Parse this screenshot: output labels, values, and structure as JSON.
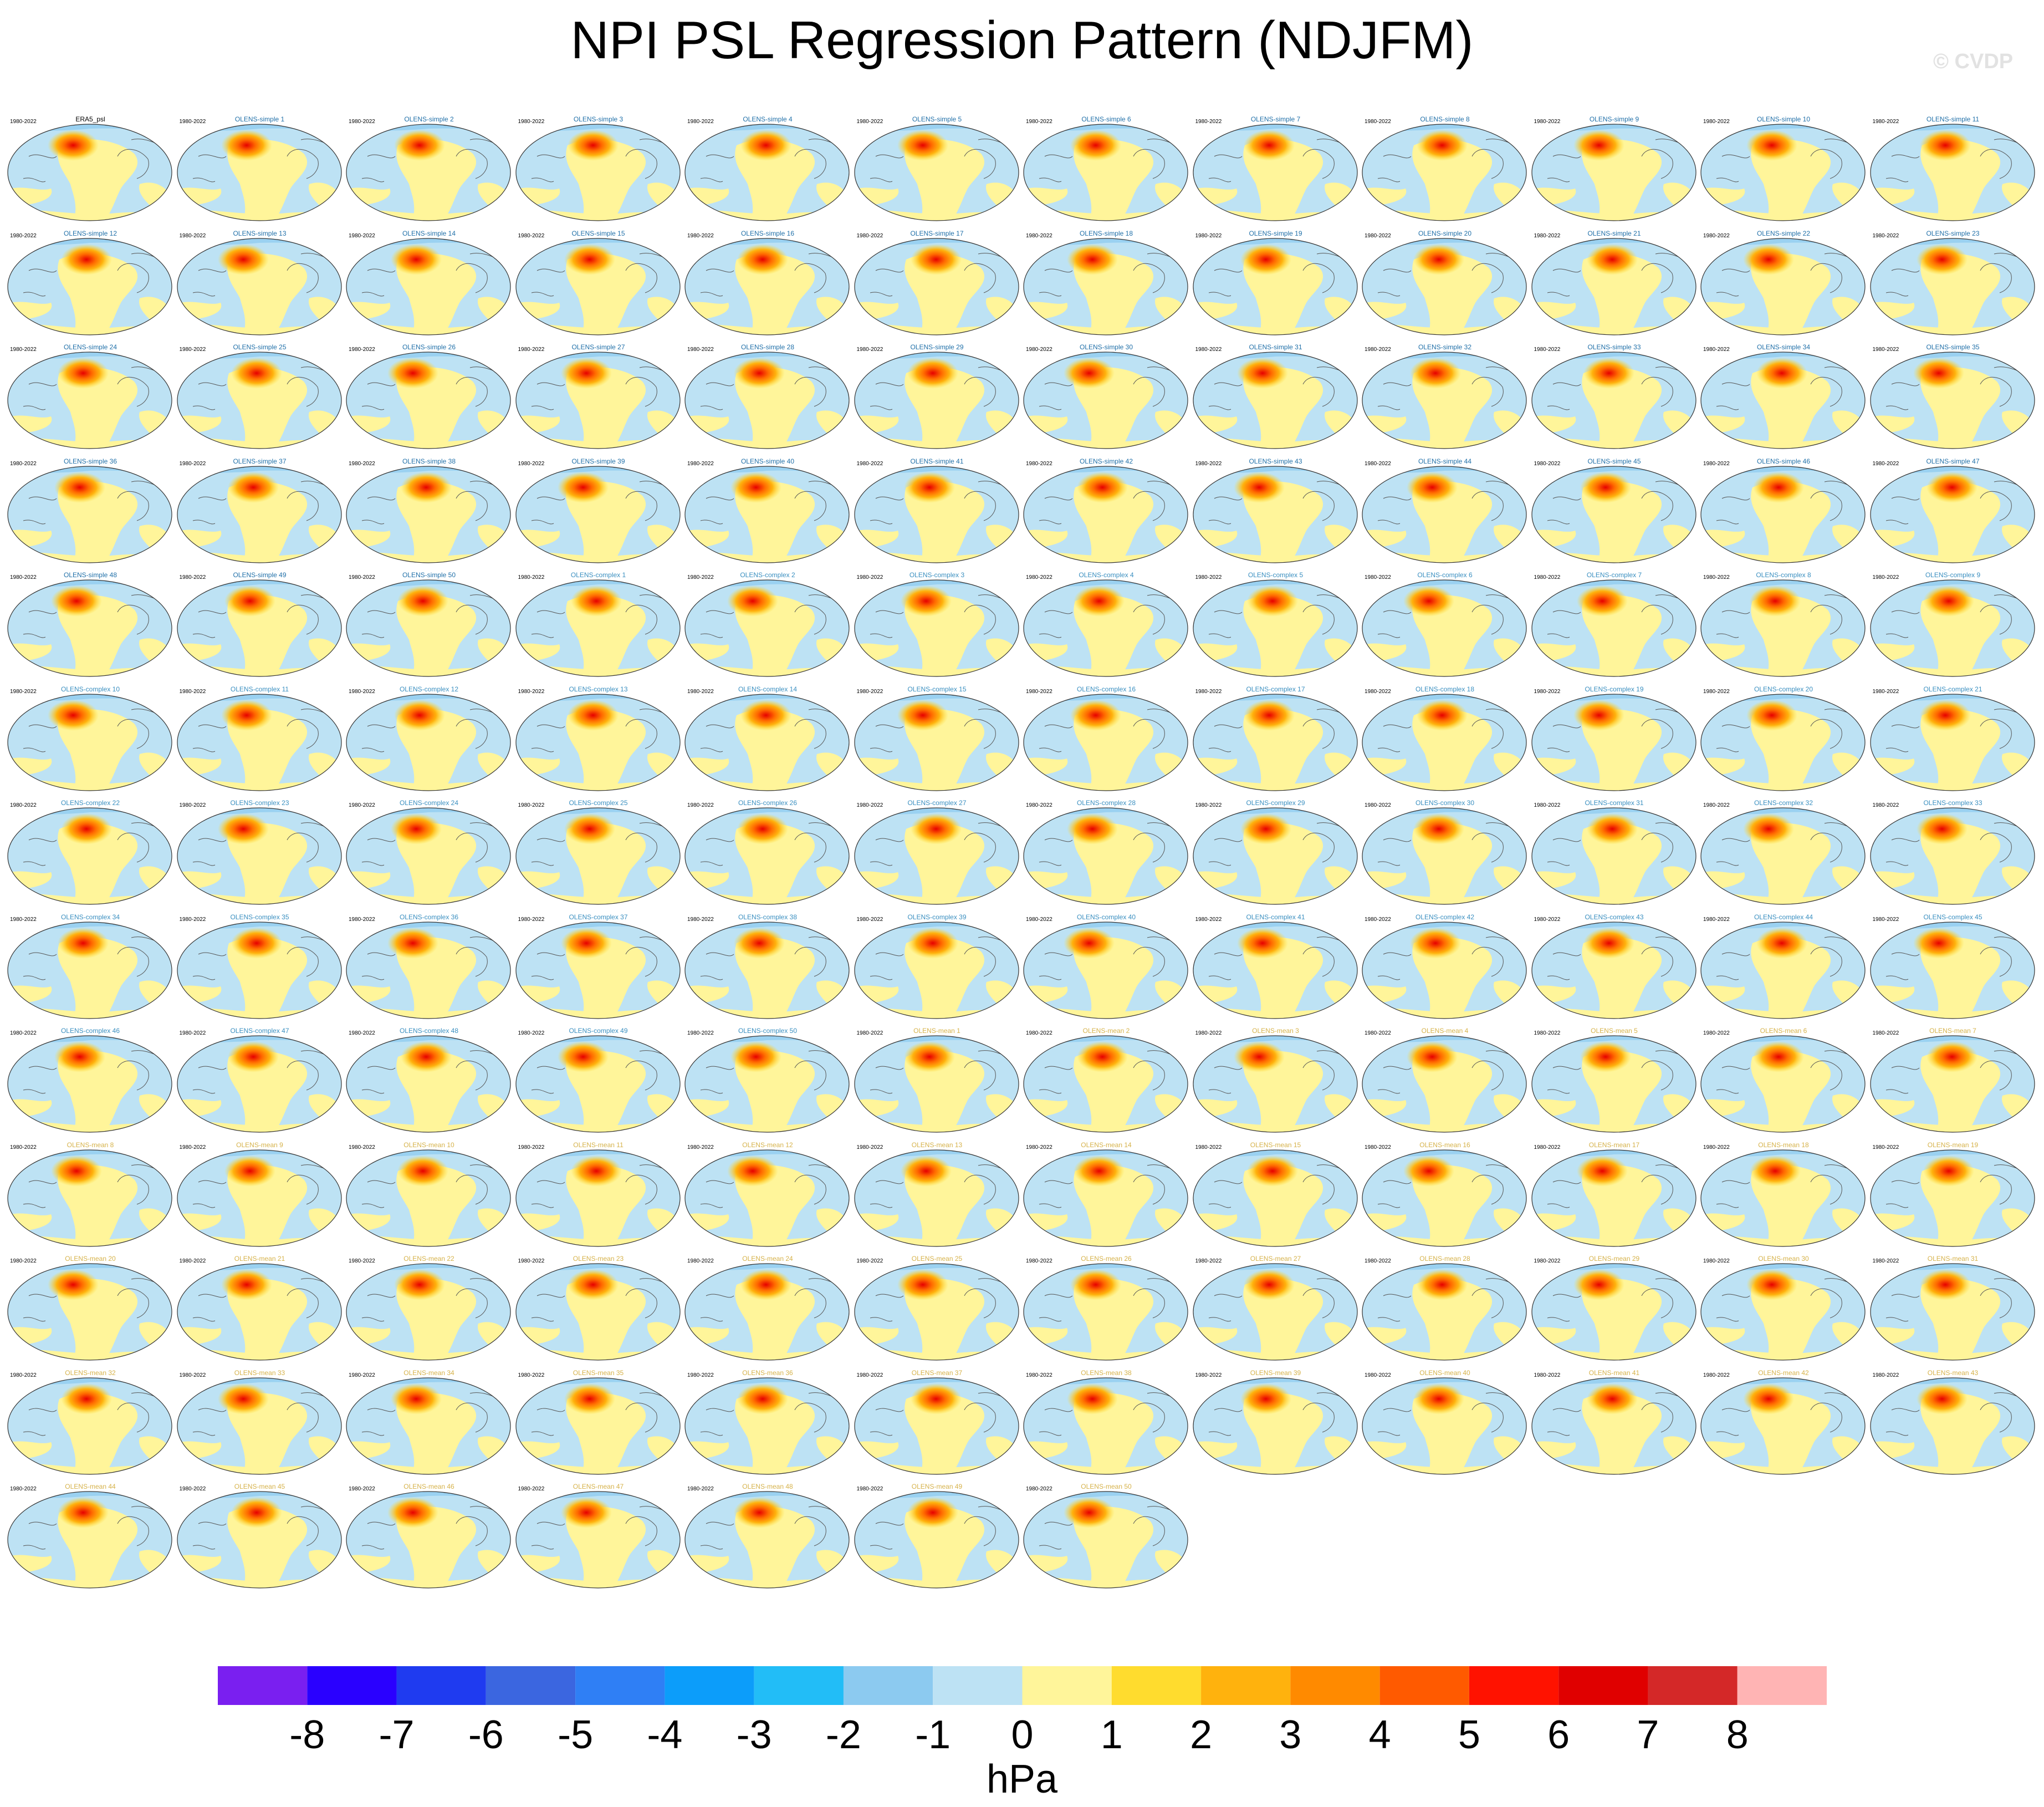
{
  "title": "NPI PSL Regression Pattern (NDJFM)",
  "watermark": "© CVDP",
  "period": "1980-2022",
  "panels": [
    "ERA5_psl",
    "OLENS-simple 1",
    "OLENS-simple 2",
    "OLENS-simple 3",
    "OLENS-simple 4",
    "OLENS-simple 5",
    "OLENS-simple 6",
    "OLENS-simple 7",
    "OLENS-simple 8",
    "OLENS-simple 9",
    "OLENS-simple 10",
    "OLENS-simple 11",
    "OLENS-simple 12",
    "OLENS-simple 13",
    "OLENS-simple 14",
    "OLENS-simple 15",
    "OLENS-simple 16",
    "OLENS-simple 17",
    "OLENS-simple 18",
    "OLENS-simple 19",
    "OLENS-simple 20",
    "OLENS-simple 21",
    "OLENS-simple 22",
    "OLENS-simple 23",
    "OLENS-simple 24",
    "OLENS-simple 25",
    "OLENS-simple 26",
    "OLENS-simple 27",
    "OLENS-simple 28",
    "OLENS-simple 29",
    "OLENS-simple 30",
    "OLENS-simple 31",
    "OLENS-simple 32",
    "OLENS-simple 33",
    "OLENS-simple 34",
    "OLENS-simple 35",
    "OLENS-simple 36",
    "OLENS-simple 37",
    "OLENS-simple 38",
    "OLENS-simple 39",
    "OLENS-simple 40",
    "OLENS-simple 41",
    "OLENS-simple 42",
    "OLENS-simple 43",
    "OLENS-simple 44",
    "OLENS-simple 45",
    "OLENS-simple 46",
    "OLENS-simple 47",
    "OLENS-simple 48",
    "OLENS-simple 49",
    "OLENS-simple 50",
    "OLENS-complex 1",
    "OLENS-complex 2",
    "OLENS-complex 3",
    "OLENS-complex 4",
    "OLENS-complex 5",
    "OLENS-complex 6",
    "OLENS-complex 7",
    "OLENS-complex 8",
    "OLENS-complex 9",
    "OLENS-complex 10",
    "OLENS-complex 11",
    "OLENS-complex 12",
    "OLENS-complex 13",
    "OLENS-complex 14",
    "OLENS-complex 15",
    "OLENS-complex 16",
    "OLENS-complex 17",
    "OLENS-complex 18",
    "OLENS-complex 19",
    "OLENS-complex 20",
    "OLENS-complex 21",
    "OLENS-complex 22",
    "OLENS-complex 23",
    "OLENS-complex 24",
    "OLENS-complex 25",
    "OLENS-complex 26",
    "OLENS-complex 27",
    "OLENS-complex 28",
    "OLENS-complex 29",
    "OLENS-complex 30",
    "OLENS-complex 31",
    "OLENS-complex 32",
    "OLENS-complex 33",
    "OLENS-complex 34",
    "OLENS-complex 35",
    "OLENS-complex 36",
    "OLENS-complex 37",
    "OLENS-complex 38",
    "OLENS-complex 39",
    "OLENS-complex 40",
    "OLENS-complex 41",
    "OLENS-complex 42",
    "OLENS-complex 43",
    "OLENS-complex 44",
    "OLENS-complex 45",
    "OLENS-complex 46",
    "OLENS-complex 47",
    "OLENS-complex 48",
    "OLENS-complex 49",
    "OLENS-complex 50",
    "OLENS-mean 1",
    "OLENS-mean 2",
    "OLENS-mean 3",
    "OLENS-mean 4",
    "OLENS-mean 5",
    "OLENS-mean 6",
    "OLENS-mean 7",
    "OLENS-mean 8",
    "OLENS-mean 9",
    "OLENS-mean 10",
    "OLENS-mean 11",
    "OLENS-mean 12",
    "OLENS-mean 13",
    "OLENS-mean 14",
    "OLENS-mean 15",
    "OLENS-mean 16",
    "OLENS-mean 17",
    "OLENS-mean 18",
    "OLENS-mean 19",
    "OLENS-mean 20",
    "OLENS-mean 21",
    "OLENS-mean 22",
    "OLENS-mean 23",
    "OLENS-mean 24",
    "OLENS-mean 25",
    "OLENS-mean 26",
    "OLENS-mean 27",
    "OLENS-mean 28",
    "OLENS-mean 29",
    "OLENS-mean 30",
    "OLENS-mean 31",
    "OLENS-mean 32",
    "OLENS-mean 33",
    "OLENS-mean 34",
    "OLENS-mean 35",
    "OLENS-mean 36",
    "OLENS-mean 37",
    "OLENS-mean 38",
    "OLENS-mean 39",
    "OLENS-mean 40",
    "OLENS-mean 41",
    "OLENS-mean 42",
    "OLENS-mean 43",
    "OLENS-mean 44",
    "OLENS-mean 45",
    "OLENS-mean 46",
    "OLENS-mean 47",
    "OLENS-mean 48",
    "OLENS-mean 49",
    "OLENS-mean 50"
  ],
  "label_colors": {
    "observation": "#000000",
    "OLENS-simple": "#1f6fa8",
    "OLENS-complex": "#3a8fc0",
    "OLENS-mean": "#d6b24a"
  },
  "colorbar": {
    "unit": "hPa",
    "ticks": [
      "-8",
      "-7",
      "-6",
      "-5",
      "-4",
      "-3",
      "-2",
      "-1",
      "0",
      "1",
      "2",
      "3",
      "4",
      "5",
      "6",
      "7",
      "8"
    ],
    "colors": [
      "#7a1ff0",
      "#2a00ff",
      "#1f3bf0",
      "#3b66e0",
      "#2f7ff5",
      "#0c9dfa",
      "#22bdf7",
      "#8ccaf0",
      "#bde2f4",
      "#fff59a",
      "#ffdc2e",
      "#ffb20d",
      "#ff8a00",
      "#ff5a00",
      "#ff1200",
      "#e00000",
      "#d42828",
      "#ffb4b4"
    ]
  }
}
